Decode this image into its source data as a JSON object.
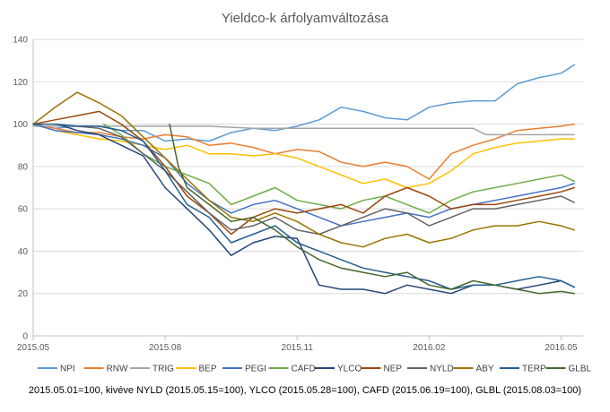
{
  "chart_data": {
    "type": "line",
    "title": "Yieldco-k árfolyamváltozása",
    "xlabel": "",
    "ylabel": "",
    "ylim": [
      0,
      140
    ],
    "yticks": [
      0,
      20,
      40,
      60,
      80,
      100,
      120,
      140
    ],
    "xlim": [
      0,
      12.5
    ],
    "xticks": [
      {
        "x": 0,
        "label": "2015.05"
      },
      {
        "x": 3,
        "label": "2015.08"
      },
      {
        "x": 6,
        "label": "2015.11"
      },
      {
        "x": 9,
        "label": "2016.02"
      },
      {
        "x": 12,
        "label": "2016.05"
      }
    ],
    "grid": true,
    "legend_position": "bottom",
    "note": "2015.05.01=100, kivéve NYLD (2015.05.15=100), YLCO (2015.05.28=100), CAFD (2015.06.19=100), GLBL (2015.08.03=100)",
    "series": [
      {
        "name": "NPI",
        "color": "#5B9BD5",
        "points": [
          [
            0,
            100
          ],
          [
            0.5,
            98
          ],
          [
            1,
            99
          ],
          [
            1.5,
            99
          ],
          [
            2,
            97
          ],
          [
            2.5,
            97
          ],
          [
            3,
            92
          ],
          [
            3.5,
            93
          ],
          [
            4,
            92
          ],
          [
            4.5,
            96
          ],
          [
            5,
            98
          ],
          [
            5.5,
            97
          ],
          [
            6,
            99
          ],
          [
            6.5,
            102
          ],
          [
            7,
            108
          ],
          [
            7.5,
            106
          ],
          [
            8,
            103
          ],
          [
            8.5,
            102
          ],
          [
            9,
            108
          ],
          [
            9.5,
            110
          ],
          [
            10,
            111
          ],
          [
            10.5,
            111
          ],
          [
            11,
            119
          ],
          [
            11.5,
            122
          ],
          [
            12,
            124
          ],
          [
            12.3,
            128
          ]
        ]
      },
      {
        "name": "RNW",
        "color": "#ED7D31",
        "points": [
          [
            0,
            100
          ],
          [
            0.5,
            98
          ],
          [
            1,
            96
          ],
          [
            1.5,
            96
          ],
          [
            2,
            94
          ],
          [
            2.5,
            93
          ],
          [
            3,
            95
          ],
          [
            3.5,
            94
          ],
          [
            4,
            90
          ],
          [
            4.5,
            91
          ],
          [
            5,
            89
          ],
          [
            5.5,
            86
          ],
          [
            6,
            88
          ],
          [
            6.5,
            87
          ],
          [
            7,
            82
          ],
          [
            7.5,
            80
          ],
          [
            8,
            82
          ],
          [
            8.5,
            80
          ],
          [
            9,
            74
          ],
          [
            9.5,
            86
          ],
          [
            10,
            90
          ],
          [
            10.5,
            93
          ],
          [
            11,
            97
          ],
          [
            11.5,
            98
          ],
          [
            12,
            99
          ],
          [
            12.3,
            100
          ]
        ]
      },
      {
        "name": "TRIG",
        "color": "#A5A5A5",
        "points": [
          [
            0,
            99
          ],
          [
            1,
            99
          ],
          [
            2,
            99
          ],
          [
            3,
            99
          ],
          [
            4,
            99
          ],
          [
            5,
            98
          ],
          [
            6,
            98
          ],
          [
            7,
            98
          ],
          [
            8,
            98
          ],
          [
            9,
            98
          ],
          [
            10,
            98
          ],
          [
            10.3,
            95
          ],
          [
            11,
            95
          ],
          [
            12,
            95
          ],
          [
            12.3,
            95
          ]
        ]
      },
      {
        "name": "BEP",
        "color": "#FFC000",
        "points": [
          [
            0,
            100
          ],
          [
            0.5,
            97
          ],
          [
            1,
            95
          ],
          [
            1.5,
            93
          ],
          [
            2,
            92
          ],
          [
            2.5,
            90
          ],
          [
            3,
            88
          ],
          [
            3.5,
            90
          ],
          [
            4,
            86
          ],
          [
            4.5,
            86
          ],
          [
            5,
            85
          ],
          [
            5.5,
            86
          ],
          [
            6,
            84
          ],
          [
            6.5,
            80
          ],
          [
            7,
            76
          ],
          [
            7.5,
            72
          ],
          [
            8,
            74
          ],
          [
            8.5,
            70
          ],
          [
            9,
            72
          ],
          [
            9.5,
            78
          ],
          [
            10,
            86
          ],
          [
            10.5,
            89
          ],
          [
            11,
            91
          ],
          [
            11.5,
            92
          ],
          [
            12,
            93
          ],
          [
            12.3,
            93
          ]
        ]
      },
      {
        "name": "PEGI",
        "color": "#4472C4",
        "points": [
          [
            0,
            100
          ],
          [
            0.5,
            97
          ],
          [
            1,
            96
          ],
          [
            1.5,
            95
          ],
          [
            2,
            93
          ],
          [
            2.5,
            90
          ],
          [
            3,
            84
          ],
          [
            3.5,
            72
          ],
          [
            4,
            64
          ],
          [
            4.5,
            58
          ],
          [
            5,
            62
          ],
          [
            5.5,
            64
          ],
          [
            6,
            60
          ],
          [
            6.5,
            56
          ],
          [
            7,
            52
          ],
          [
            7.5,
            54
          ],
          [
            8,
            56
          ],
          [
            8.5,
            58
          ],
          [
            9,
            56
          ],
          [
            9.5,
            60
          ],
          [
            10,
            62
          ],
          [
            10.5,
            64
          ],
          [
            11,
            66
          ],
          [
            11.5,
            68
          ],
          [
            12,
            70
          ],
          [
            12.3,
            72
          ]
        ]
      },
      {
        "name": "CAFD",
        "color": "#70AD47",
        "points": [
          [
            1.6,
            100
          ],
          [
            2,
            95
          ],
          [
            2.5,
            86
          ],
          [
            3,
            80
          ],
          [
            3.5,
            76
          ],
          [
            4,
            72
          ],
          [
            4.5,
            62
          ],
          [
            5,
            66
          ],
          [
            5.5,
            70
          ],
          [
            6,
            64
          ],
          [
            6.5,
            62
          ],
          [
            7,
            60
          ],
          [
            7.5,
            64
          ],
          [
            8,
            66
          ],
          [
            8.5,
            62
          ],
          [
            9,
            58
          ],
          [
            9.5,
            64
          ],
          [
            10,
            68
          ],
          [
            10.5,
            70
          ],
          [
            11,
            72
          ],
          [
            11.5,
            74
          ],
          [
            12,
            76
          ],
          [
            12.3,
            73
          ]
        ]
      },
      {
        "name": "YLCO",
        "color": "#264478",
        "points": [
          [
            0.55,
            100
          ],
          [
            1,
            97
          ],
          [
            1.5,
            95
          ],
          [
            2,
            90
          ],
          [
            2.5,
            85
          ],
          [
            3,
            70
          ],
          [
            3.5,
            60
          ],
          [
            4,
            50
          ],
          [
            4.5,
            38
          ],
          [
            5,
            44
          ],
          [
            5.5,
            47
          ],
          [
            6,
            46
          ],
          [
            6.5,
            24
          ],
          [
            7,
            22
          ],
          [
            7.5,
            22
          ],
          [
            8,
            20
          ],
          [
            8.5,
            24
          ],
          [
            9,
            22
          ],
          [
            9.5,
            20
          ],
          [
            10,
            24
          ],
          [
            10.5,
            24
          ],
          [
            11,
            22
          ],
          [
            11.5,
            24
          ],
          [
            12,
            26
          ],
          [
            12.3,
            23
          ]
        ]
      },
      {
        "name": "NEP",
        "color": "#9E480E",
        "points": [
          [
            0,
            100
          ],
          [
            0.5,
            102
          ],
          [
            1,
            104
          ],
          [
            1.5,
            106
          ],
          [
            2,
            100
          ],
          [
            2.5,
            92
          ],
          [
            3,
            80
          ],
          [
            3.5,
            66
          ],
          [
            4,
            58
          ],
          [
            4.5,
            48
          ],
          [
            5,
            56
          ],
          [
            5.5,
            60
          ],
          [
            6,
            58
          ],
          [
            6.5,
            60
          ],
          [
            7,
            62
          ],
          [
            7.5,
            58
          ],
          [
            8,
            66
          ],
          [
            8.5,
            70
          ],
          [
            9,
            66
          ],
          [
            9.5,
            60
          ],
          [
            10,
            62
          ],
          [
            10.5,
            62
          ],
          [
            11,
            64
          ],
          [
            11.5,
            66
          ],
          [
            12,
            68
          ],
          [
            12.3,
            70
          ]
        ]
      },
      {
        "name": "NYLD",
        "color": "#636363",
        "points": [
          [
            0.45,
            100
          ],
          [
            1,
            99
          ],
          [
            1.5,
            98
          ],
          [
            2,
            94
          ],
          [
            2.5,
            86
          ],
          [
            3,
            78
          ],
          [
            3.5,
            68
          ],
          [
            4,
            58
          ],
          [
            4.5,
            50
          ],
          [
            5,
            52
          ],
          [
            5.5,
            56
          ],
          [
            6,
            50
          ],
          [
            6.5,
            48
          ],
          [
            7,
            52
          ],
          [
            7.5,
            56
          ],
          [
            8,
            60
          ],
          [
            8.5,
            58
          ],
          [
            9,
            52
          ],
          [
            9.5,
            56
          ],
          [
            10,
            60
          ],
          [
            10.5,
            60
          ],
          [
            11,
            62
          ],
          [
            11.5,
            64
          ],
          [
            12,
            66
          ],
          [
            12.3,
            63
          ]
        ]
      },
      {
        "name": "ABY",
        "color": "#997300",
        "points": [
          [
            0,
            100
          ],
          [
            0.5,
            108
          ],
          [
            1,
            115
          ],
          [
            1.5,
            110
          ],
          [
            2,
            104
          ],
          [
            2.5,
            94
          ],
          [
            3,
            84
          ],
          [
            3.5,
            74
          ],
          [
            4,
            64
          ],
          [
            4.5,
            56
          ],
          [
            5,
            54
          ],
          [
            5.5,
            58
          ],
          [
            6,
            54
          ],
          [
            6.5,
            48
          ],
          [
            7,
            44
          ],
          [
            7.5,
            42
          ],
          [
            8,
            46
          ],
          [
            8.5,
            48
          ],
          [
            9,
            44
          ],
          [
            9.5,
            46
          ],
          [
            10,
            50
          ],
          [
            10.5,
            52
          ],
          [
            11,
            52
          ],
          [
            11.5,
            54
          ],
          [
            12,
            52
          ],
          [
            12.3,
            50
          ]
        ]
      },
      {
        "name": "TERP",
        "color": "#255E91",
        "points": [
          [
            0,
            100
          ],
          [
            0.5,
            100
          ],
          [
            1,
            99
          ],
          [
            1.5,
            99
          ],
          [
            2,
            97
          ],
          [
            2.5,
            92
          ],
          [
            3,
            78
          ],
          [
            3.5,
            62
          ],
          [
            4,
            56
          ],
          [
            4.5,
            44
          ],
          [
            5,
            48
          ],
          [
            5.5,
            52
          ],
          [
            6,
            44
          ],
          [
            6.5,
            40
          ],
          [
            7,
            36
          ],
          [
            7.5,
            32
          ],
          [
            8,
            30
          ],
          [
            8.5,
            28
          ],
          [
            9,
            26
          ],
          [
            9.5,
            22
          ],
          [
            10,
            24
          ],
          [
            10.5,
            24
          ],
          [
            11,
            26
          ],
          [
            11.5,
            28
          ],
          [
            12,
            26
          ],
          [
            12.3,
            23
          ]
        ]
      },
      {
        "name": "GLBL",
        "color": "#43682B",
        "points": [
          [
            3.1,
            100
          ],
          [
            3.3,
            80
          ],
          [
            3.5,
            70
          ],
          [
            4,
            62
          ],
          [
            4.5,
            54
          ],
          [
            5,
            56
          ],
          [
            5.5,
            50
          ],
          [
            6,
            42
          ],
          [
            6.5,
            36
          ],
          [
            7,
            32
          ],
          [
            7.5,
            30
          ],
          [
            8,
            28
          ],
          [
            8.5,
            30
          ],
          [
            9,
            24
          ],
          [
            9.5,
            22
          ],
          [
            10,
            26
          ],
          [
            10.5,
            24
          ],
          [
            11,
            22
          ],
          [
            11.5,
            20
          ],
          [
            12,
            21
          ],
          [
            12.3,
            20
          ]
        ]
      }
    ]
  }
}
